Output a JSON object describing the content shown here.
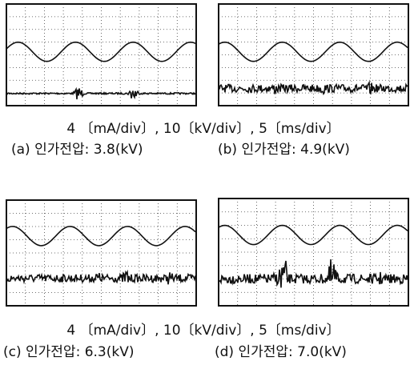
{
  "figure": {
    "top": {
      "caption": "4 〔mA/div〕, 10〔kV/div〕, 5〔ms/div〕",
      "panels": [
        {
          "label": "(a) 인가전압: 3.8(kV)"
        },
        {
          "label": "(b) 인가전압: 4.9(kV)"
        }
      ]
    },
    "bottom": {
      "caption": "4 〔mA/div〕, 10〔kV/div〕, 5〔ms/div〕",
      "panels": [
        {
          "label": "(c) 인가전압: 6.3(kV)"
        },
        {
          "label": "(d) 인가전압: 7.0(kV)"
        }
      ]
    }
  }
}
